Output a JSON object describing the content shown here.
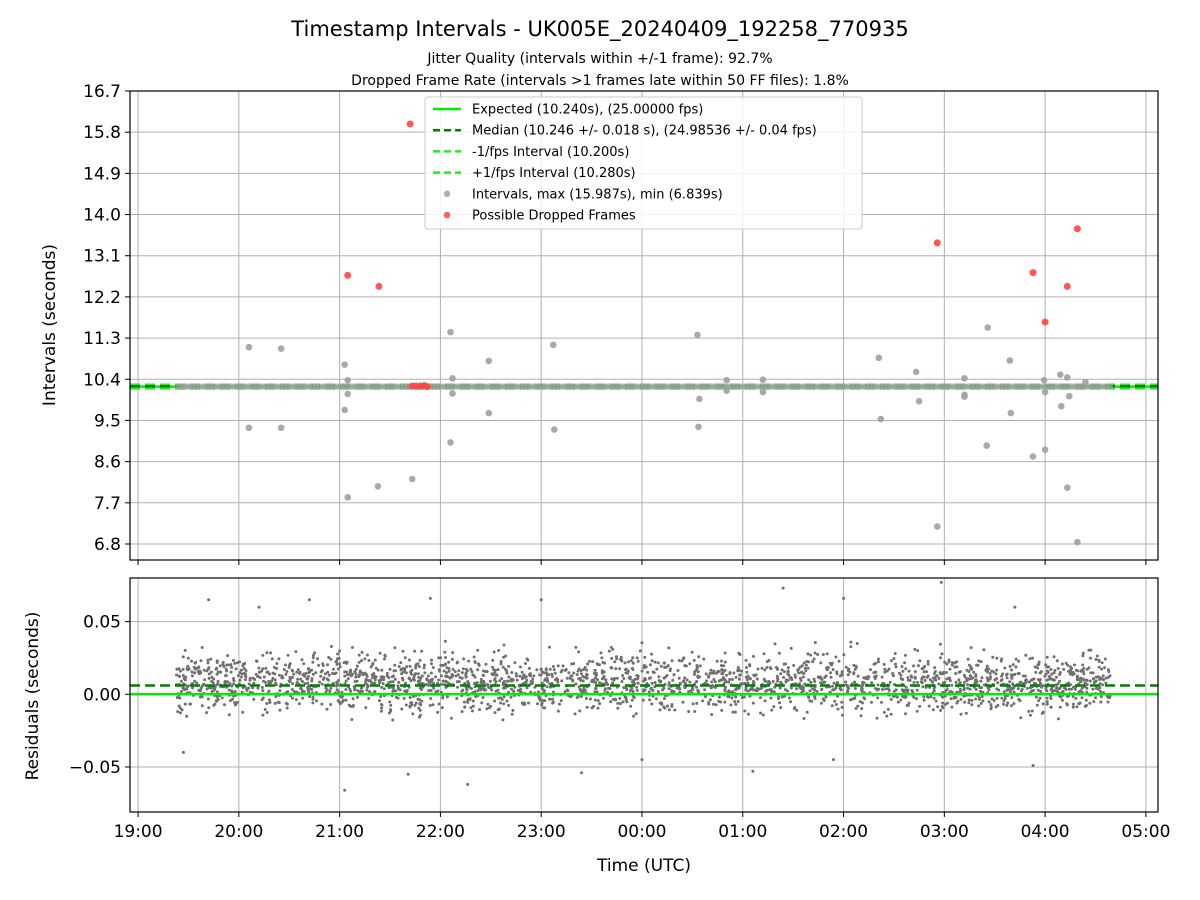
{
  "title": "Timestamp Intervals - UK005E_20240409_192258_770935",
  "subtitle_lines": [
    "Jitter Quality (intervals within +/-1 frame): 92.7%",
    "Dropped Frame Rate (intervals >1 frames late within 50 FF files): 1.8%"
  ],
  "colors": {
    "expected": "#00ee00",
    "median": "#007f00",
    "interval_band": "#22ee22",
    "intervals": "#a0a0a0",
    "dropped": "#ff4444",
    "residuals": "#707070",
    "grid": "#b0b0b0"
  },
  "chart_data": [
    {
      "type": "scatter",
      "ylabel": "Intervals (seconds)",
      "yticks": [
        "16.7",
        "15.8",
        "14.9",
        "14.0",
        "13.1",
        "12.2",
        "11.3",
        "10.4",
        "9.5",
        "8.6",
        "7.7",
        "6.8"
      ],
      "ytick_values": [
        16.7,
        15.8,
        14.9,
        14.0,
        13.1,
        12.2,
        11.3,
        10.4,
        9.5,
        8.6,
        7.7,
        6.8
      ],
      "ylim": [
        6.45,
        16.7
      ],
      "xlim": [
        18.92,
        29.12
      ],
      "grid": true,
      "legend_position": "upper-center",
      "legend": [
        "Expected (10.240s), (25.00000 fps)",
        "Median (10.246 +/- 0.018 s), (24.98536 +/- 0.04 fps)",
        "-1/fps Interval (10.200s)",
        "+1/fps Interval (10.280s)",
        "Intervals, max (15.987s), min (6.839s)",
        "Possible Dropped Frames"
      ],
      "lines": {
        "expected": 10.24,
        "median": 10.246,
        "minus_one_fps": 10.2,
        "plus_one_fps": 10.28
      },
      "intervals_outliers": [
        [
          20.1,
          11.1
        ],
        [
          20.42,
          11.07
        ],
        [
          20.1,
          9.34
        ],
        [
          20.42,
          9.34
        ],
        [
          21.05,
          10.72
        ],
        [
          21.05,
          9.73
        ],
        [
          21.08,
          10.38
        ],
        [
          21.08,
          10.08
        ],
        [
          21.08,
          7.82
        ],
        [
          21.38,
          8.06
        ],
        [
          21.72,
          8.22
        ],
        [
          22.1,
          11.43
        ],
        [
          22.1,
          9.02
        ],
        [
          22.12,
          10.42
        ],
        [
          22.12,
          10.09
        ],
        [
          22.48,
          10.8
        ],
        [
          22.48,
          9.66
        ],
        [
          23.12,
          11.15
        ],
        [
          23.13,
          9.3
        ],
        [
          24.55,
          11.37
        ],
        [
          24.56,
          9.36
        ],
        [
          24.57,
          9.97
        ],
        [
          24.84,
          10.38
        ],
        [
          24.84,
          10.15
        ],
        [
          25.2,
          10.39
        ],
        [
          25.2,
          10.12
        ],
        [
          26.35,
          10.87
        ],
        [
          26.37,
          9.53
        ],
        [
          26.72,
          10.56
        ],
        [
          26.75,
          9.92
        ],
        [
          26.93,
          7.18
        ],
        [
          27.2,
          10.42
        ],
        [
          27.2,
          10.06
        ],
        [
          27.2,
          10.02
        ],
        [
          27.43,
          11.53
        ],
        [
          27.42,
          8.95
        ],
        [
          27.65,
          10.81
        ],
        [
          27.66,
          9.66
        ],
        [
          27.88,
          8.71
        ],
        [
          27.99,
          10.38
        ],
        [
          28.0,
          10.12
        ],
        [
          28.0,
          8.86
        ],
        [
          28.15,
          10.5
        ],
        [
          28.16,
          9.81
        ],
        [
          28.22,
          10.44
        ],
        [
          28.24,
          10.03
        ],
        [
          28.22,
          8.03
        ],
        [
          28.32,
          6.84
        ],
        [
          28.4,
          10.34
        ]
      ],
      "interval_band": {
        "x_start": 19.4,
        "x_end": 28.65,
        "value": 10.24
      },
      "dropped_frames": [
        [
          21.7,
          15.98
        ],
        [
          21.08,
          12.67
        ],
        [
          21.39,
          12.43
        ],
        [
          21.72,
          10.25
        ],
        [
          21.76,
          10.25
        ],
        [
          21.8,
          10.25
        ],
        [
          21.84,
          10.26
        ],
        [
          21.87,
          10.24
        ],
        [
          26.93,
          13.38
        ],
        [
          27.88,
          12.73
        ],
        [
          28.0,
          11.65
        ],
        [
          28.22,
          12.43
        ],
        [
          28.32,
          13.69
        ]
      ]
    },
    {
      "type": "scatter",
      "xlabel": "Time (UTC)",
      "ylabel": "Residuals (seconds)",
      "yticks": [
        "0.05",
        "0.00",
        "−0.05"
      ],
      "ytick_values": [
        0.05,
        0.0,
        -0.05
      ],
      "ylim": [
        -0.081,
        0.08
      ],
      "xlim": [
        18.92,
        29.12
      ],
      "xticks": [
        "19:00",
        "20:00",
        "21:00",
        "22:00",
        "23:00",
        "00:00",
        "01:00",
        "02:00",
        "03:00",
        "04:00",
        "05:00"
      ],
      "xtick_values": [
        19,
        20,
        21,
        22,
        23,
        24,
        25,
        26,
        27,
        28,
        29
      ],
      "grid": true,
      "lines": {
        "expected": 0.0,
        "median": 0.006
      },
      "residual_cloud": {
        "x_start": 19.38,
        "x_end": 28.65,
        "center": 0.008,
        "spread": 0.018,
        "count": 2600
      },
      "residual_extremes": [
        [
          19.7,
          0.065
        ],
        [
          20.2,
          0.06
        ],
        [
          20.7,
          0.065
        ],
        [
          21.9,
          0.066
        ],
        [
          23.0,
          0.065
        ],
        [
          25.4,
          0.073
        ],
        [
          26.0,
          0.066
        ],
        [
          26.97,
          0.077
        ],
        [
          27.7,
          0.06
        ],
        [
          21.05,
          -0.066
        ],
        [
          21.68,
          -0.055
        ],
        [
          22.27,
          -0.062
        ],
        [
          23.4,
          -0.054
        ],
        [
          24.0,
          -0.045
        ],
        [
          25.1,
          -0.053
        ],
        [
          25.9,
          -0.045
        ],
        [
          27.88,
          -0.049
        ],
        [
          19.45,
          -0.04
        ]
      ]
    }
  ]
}
